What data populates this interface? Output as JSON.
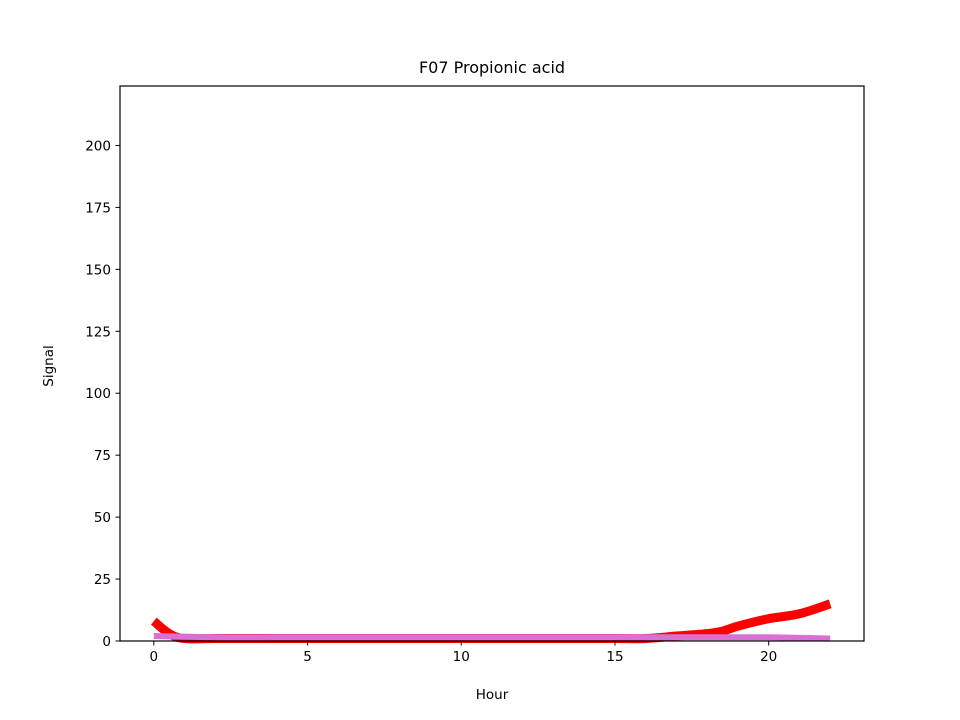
{
  "chart_data": {
    "type": "line",
    "title": "F07 Propionic acid",
    "xlabel": "Hour",
    "ylabel": "Signal",
    "xlim": [
      -1.1,
      23.1
    ],
    "ylim": [
      0,
      224
    ],
    "xticks": [
      0,
      5,
      10,
      15,
      20
    ],
    "yticks": [
      0,
      25,
      50,
      75,
      100,
      125,
      150,
      175,
      200
    ],
    "grid": false,
    "series": [
      {
        "color": "#ff0000",
        "x": [
          0,
          0.5,
          1,
          2,
          4,
          6,
          8,
          10,
          12,
          14,
          15,
          16,
          17,
          18,
          18.5,
          19,
          20,
          21,
          22
        ],
        "y": [
          8,
          3,
          1,
          1,
          1,
          1,
          1,
          1,
          1,
          1,
          1,
          1,
          2,
          3,
          4,
          6,
          9,
          11,
          15
        ]
      },
      {
        "color": "#da70d6",
        "x": [
          0,
          2,
          4,
          6,
          8,
          10,
          12,
          14,
          16,
          18,
          20,
          22
        ],
        "y": [
          2,
          1.5,
          1.5,
          1.5,
          1.5,
          1.5,
          1.5,
          1.5,
          1.5,
          1.5,
          1.5,
          1
        ]
      }
    ]
  }
}
